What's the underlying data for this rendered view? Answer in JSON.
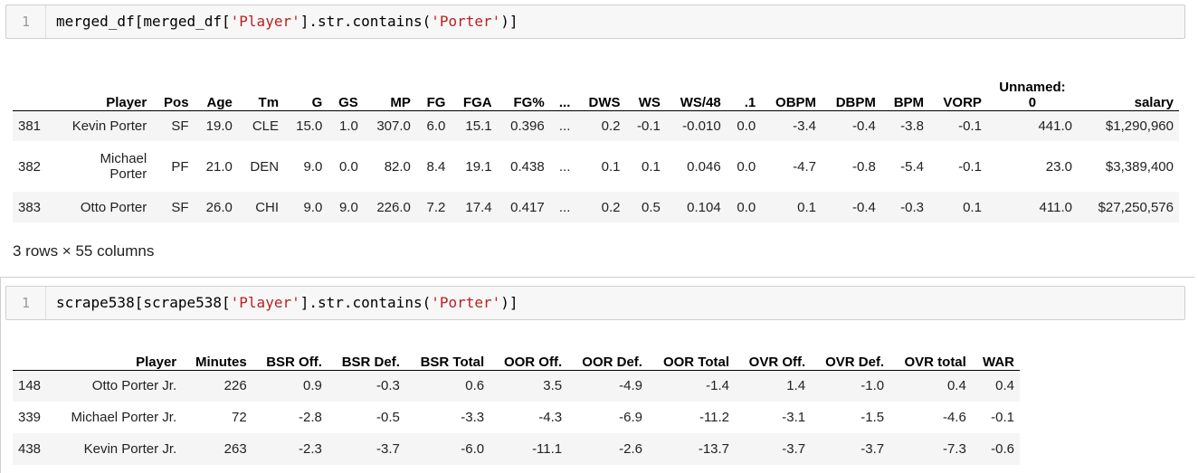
{
  "cell1": {
    "line_number": "1",
    "code_parts": [
      "merged_df[merged_df[",
      "'Player'",
      "].str.contains(",
      "'Porter'",
      ")]"
    ]
  },
  "table1": {
    "columns": [
      "",
      "Player",
      "Pos",
      "Age",
      "Tm",
      "G",
      "GS",
      "MP",
      "FG",
      "FGA",
      "FG%",
      "...",
      "DWS",
      "WS",
      "WS/48",
      ".1",
      "OBPM",
      "DBPM",
      "BPM",
      "VORP",
      "Unnamed:\n0",
      "salary"
    ],
    "rows": [
      [
        "381",
        "Kevin Porter",
        "SF",
        "19.0",
        "CLE",
        "15.0",
        "1.0",
        "307.0",
        "6.0",
        "15.1",
        "0.396",
        "...",
        "0.2",
        "-0.1",
        "-0.010",
        "0.0",
        "-3.4",
        "-0.4",
        "-3.8",
        "-0.1",
        "441.0",
        "$1,290,960"
      ],
      [
        "382",
        "Michael\nPorter",
        "PF",
        "21.0",
        "DEN",
        "9.0",
        "0.0",
        "82.0",
        "8.4",
        "19.1",
        "0.438",
        "...",
        "0.1",
        "0.1",
        "0.046",
        "0.0",
        "-4.7",
        "-0.8",
        "-5.4",
        "-0.1",
        "23.0",
        "$3,389,400"
      ],
      [
        "383",
        "Otto Porter",
        "SF",
        "26.0",
        "CHI",
        "9.0",
        "9.0",
        "226.0",
        "7.2",
        "17.4",
        "0.417",
        "...",
        "0.2",
        "0.5",
        "0.104",
        "0.0",
        "0.1",
        "-0.4",
        "-0.3",
        "0.1",
        "411.0",
        "$27,250,576"
      ]
    ],
    "shape_note": "3 rows × 55 columns"
  },
  "cell2": {
    "line_number": "1",
    "code_parts": [
      "scrape538[scrape538[",
      "'Player'",
      "].str.contains(",
      "'Porter'",
      ")]"
    ]
  },
  "table2": {
    "columns": [
      "",
      "Player",
      "Minutes",
      "BSR Off.",
      "BSR Def.",
      "BSR Total",
      "OOR Off.",
      "OOR Def.",
      "OOR Total",
      "OVR Off.",
      "OVR Def.",
      "OVR total",
      "WAR"
    ],
    "rows": [
      [
        "148",
        "Otto Porter Jr.",
        "226",
        "0.9",
        "-0.3",
        "0.6",
        "3.5",
        "-4.9",
        "-1.4",
        "1.4",
        "-1.0",
        "0.4",
        "0.4"
      ],
      [
        "339",
        "Michael Porter Jr.",
        "72",
        "-2.8",
        "-0.5",
        "-3.3",
        "-4.3",
        "-6.9",
        "-11.2",
        "-3.1",
        "-1.5",
        "-4.6",
        "-0.1"
      ],
      [
        "438",
        "Kevin Porter Jr.",
        "263",
        "-2.3",
        "-3.7",
        "-6.0",
        "-11.1",
        "-2.6",
        "-13.7",
        "-3.7",
        "-3.7",
        "-7.3",
        "-0.6"
      ]
    ]
  },
  "colors": {
    "string_literal": "#ba2121",
    "input_background": "#f7f7f7",
    "row_stripe": "#f5f5f5"
  }
}
